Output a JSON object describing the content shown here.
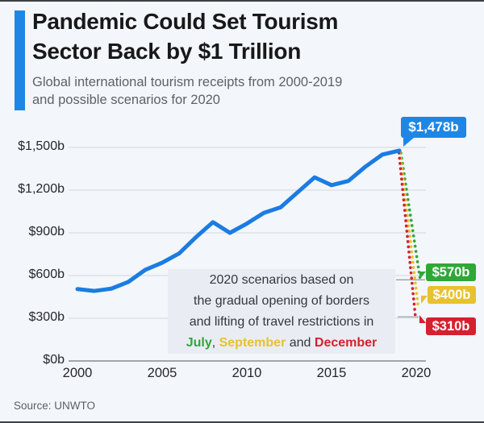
{
  "header": {
    "accent_color": "#1e87e5",
    "title_lines": [
      "Pandemic Could Set Tourism",
      "Sector Back by $1 Trillion"
    ],
    "subtitle_lines": [
      "Global international tourism receipts from 2000-2019",
      "and possible scenarios for 2020"
    ]
  },
  "chart_data": {
    "type": "line",
    "title": "Pandemic Could Set Tourism Sector Back by $1 Trillion",
    "subtitle": "Global international tourism receipts from 2000-2019 and possible scenarios for 2020",
    "x": [
      2000,
      2001,
      2002,
      2003,
      2004,
      2005,
      2006,
      2007,
      2008,
      2009,
      2010,
      2011,
      2012,
      2013,
      2014,
      2015,
      2016,
      2017,
      2018,
      2019
    ],
    "series": [
      {
        "name": "Global international tourism receipts ($ billion)",
        "color": "#1b7ce2",
        "values": [
          505,
          492,
          508,
          555,
          640,
          690,
          755,
          870,
          975,
          900,
          965,
          1040,
          1080,
          1185,
          1290,
          1235,
          1265,
          1365,
          1450,
          1478
        ]
      }
    ],
    "peak_label": {
      "text": "$1,478b",
      "value": 1478,
      "year": 2019,
      "color": "#1e87e5"
    },
    "scenarios_2020": [
      {
        "label": "$570b",
        "value": 570,
        "month": "July",
        "color": "#2fa837"
      },
      {
        "label": "$400b",
        "value": 400,
        "month": "September",
        "color": "#e8c12e"
      },
      {
        "label": "$310b",
        "value": 310,
        "month": "December",
        "color": "#d5212e"
      }
    ],
    "y_ticks": [
      {
        "label": "$1,500b",
        "value": 1500
      },
      {
        "label": "$1,200b",
        "value": 1200
      },
      {
        "label": "$900b",
        "value": 900
      },
      {
        "label": "$600b",
        "value": 600
      },
      {
        "label": "$300b",
        "value": 300
      },
      {
        "label": "$0b",
        "value": 0
      }
    ],
    "x_ticks": [
      {
        "label": "2000",
        "value": 2000
      },
      {
        "label": "2005",
        "value": 2005
      },
      {
        "label": "2010",
        "value": 2010
      },
      {
        "label": "2015",
        "value": 2015
      },
      {
        "label": "2020",
        "value": 2020
      }
    ],
    "ylim": [
      0,
      1500
    ],
    "xlim": [
      2000,
      2020
    ],
    "grid": true,
    "legend": false
  },
  "annotation": {
    "line1": "2020 scenarios based on",
    "line2": "the gradual opening of borders",
    "line3": "and lifting of travel restrictions in",
    "july": "July",
    "comma": ", ",
    "september": "September",
    "and_word": " and ",
    "december": "December"
  },
  "source": "Source: UNWTO"
}
